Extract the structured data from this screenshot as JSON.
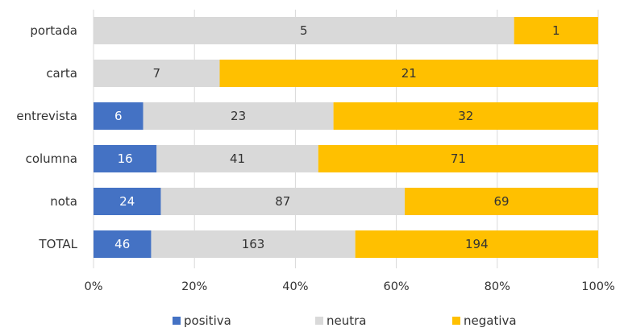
{
  "chart_data": {
    "type": "bar",
    "orientation": "horizontal",
    "stacked": "percent",
    "categories": [
      "portada",
      "carta",
      "entrevista",
      "columna",
      "nota",
      "TOTAL"
    ],
    "series": [
      {
        "name": "positiva",
        "color": "#4472C4",
        "label_color": "#ffffff",
        "values": [
          0,
          0,
          6,
          16,
          24,
          46
        ]
      },
      {
        "name": "neutra",
        "color": "#D9D9D9",
        "label_color": "#333333",
        "values": [
          5,
          7,
          23,
          41,
          87,
          163
        ]
      },
      {
        "name": "negativa",
        "color": "#FFC000",
        "label_color": "#333333",
        "values": [
          1,
          21,
          32,
          71,
          69,
          194
        ]
      }
    ],
    "xticks": [
      "0%",
      "20%",
      "40%",
      "60%",
      "80%",
      "100%"
    ],
    "xlim": [
      0,
      100
    ],
    "grid": "vertical",
    "legend_position": "bottom"
  }
}
